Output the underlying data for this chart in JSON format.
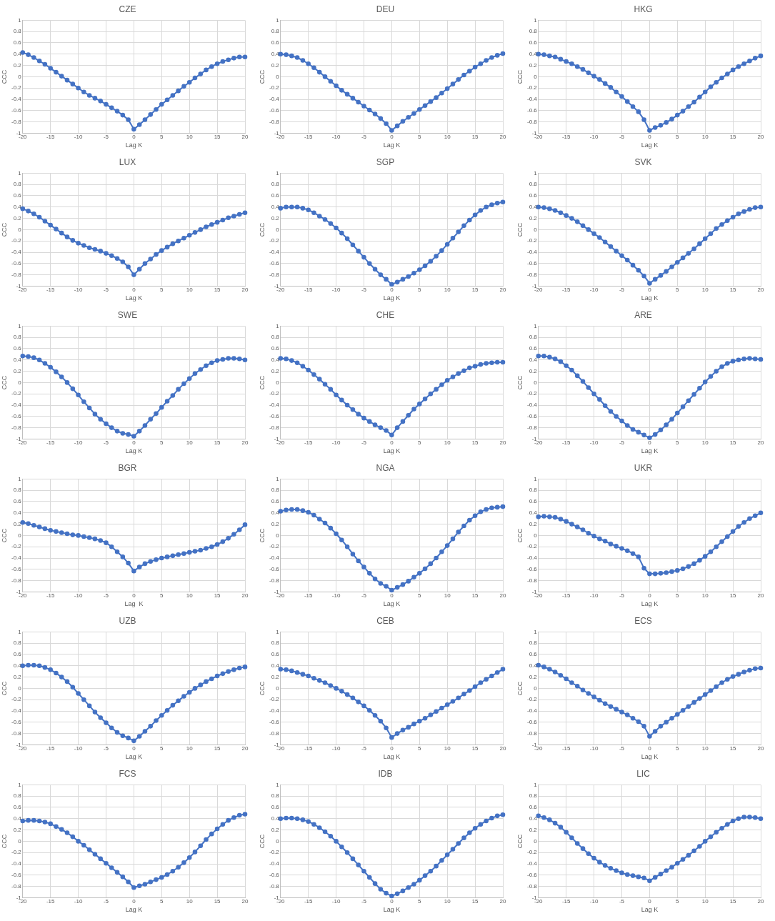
{
  "chart_data": [
    {
      "type": "line",
      "title": "CZE",
      "xlabel": "Lag K",
      "ylabel": "CCC",
      "x": [
        -20,
        -19,
        -18,
        -17,
        -16,
        -15,
        -14,
        -13,
        -12,
        -11,
        -10,
        -9,
        -8,
        -7,
        -6,
        -5,
        -4,
        -3,
        -2,
        -1,
        0,
        1,
        2,
        3,
        4,
        5,
        6,
        7,
        8,
        9,
        10,
        11,
        12,
        13,
        14,
        15,
        16,
        17,
        18,
        19,
        20
      ],
      "series": [
        {
          "color": "#4472c4",
          "values": [
            0.43,
            0.39,
            0.34,
            0.28,
            0.22,
            0.15,
            0.08,
            0.01,
            -0.06,
            -0.13,
            -0.2,
            -0.27,
            -0.33,
            -0.38,
            -0.43,
            -0.49,
            -0.55,
            -0.61,
            -0.68,
            -0.76,
            -0.93,
            -0.85,
            -0.76,
            -0.67,
            -0.58,
            -0.49,
            -0.41,
            -0.33,
            -0.25,
            -0.17,
            -0.1,
            -0.02,
            0.05,
            0.12,
            0.18,
            0.23,
            0.27,
            0.3,
            0.33,
            0.35,
            0.35
          ]
        }
      ],
      "xlim": [
        -20,
        20
      ],
      "xticks": [
        -20,
        -15,
        -10,
        -5,
        0,
        5,
        10,
        15,
        20
      ],
      "ylim": [
        -1,
        1
      ],
      "yticks": [
        -1,
        -0.8,
        -0.6,
        -0.4,
        -0.2,
        0,
        0.2,
        0.4,
        0.6,
        0.8,
        1
      ],
      "grid": true,
      "marker": "circle"
    },
    {
      "type": "line",
      "title": "DEU",
      "xlabel": "Lag K",
      "ylabel": "CCC",
      "x": [
        -20,
        -19,
        -18,
        -17,
        -16,
        -15,
        -14,
        -13,
        -12,
        -11,
        -10,
        -9,
        -8,
        -7,
        -6,
        -5,
        -4,
        -3,
        -2,
        -1,
        0,
        1,
        2,
        3,
        4,
        5,
        6,
        7,
        8,
        9,
        10,
        11,
        12,
        13,
        14,
        15,
        16,
        17,
        18,
        19,
        20
      ],
      "series": [
        {
          "color": "#4472c4",
          "values": [
            0.4,
            0.39,
            0.37,
            0.34,
            0.29,
            0.23,
            0.16,
            0.08,
            0,
            -0.08,
            -0.16,
            -0.24,
            -0.31,
            -0.38,
            -0.45,
            -0.52,
            -0.59,
            -0.66,
            -0.74,
            -0.83,
            -0.95,
            -0.87,
            -0.79,
            -0.72,
            -0.65,
            -0.58,
            -0.51,
            -0.44,
            -0.37,
            -0.29,
            -0.21,
            -0.13,
            -0.05,
            0.03,
            0.1,
            0.17,
            0.23,
            0.29,
            0.34,
            0.38,
            0.41
          ]
        }
      ],
      "xlim": [
        -20,
        20
      ],
      "xticks": [
        -20,
        -15,
        -10,
        -5,
        0,
        5,
        10,
        15,
        20
      ],
      "ylim": [
        -1,
        1
      ],
      "yticks": [
        -1,
        -0.8,
        -0.6,
        -0.4,
        -0.2,
        0,
        0.2,
        0.4,
        0.6,
        0.8,
        1
      ],
      "grid": true,
      "marker": "circle"
    },
    {
      "type": "line",
      "title": "HKG",
      "xlabel": "Lag K",
      "ylabel": "CCC",
      "x": [
        -20,
        -19,
        -18,
        -17,
        -16,
        -15,
        -14,
        -13,
        -12,
        -11,
        -10,
        -9,
        -8,
        -7,
        -6,
        -5,
        -4,
        -3,
        -2,
        -1,
        0,
        1,
        2,
        3,
        4,
        5,
        6,
        7,
        8,
        9,
        10,
        11,
        12,
        13,
        14,
        15,
        16,
        17,
        18,
        19,
        20
      ],
      "series": [
        {
          "color": "#4472c4",
          "values": [
            0.4,
            0.39,
            0.37,
            0.35,
            0.31,
            0.27,
            0.23,
            0.18,
            0.13,
            0.07,
            0.01,
            -0.05,
            -0.12,
            -0.19,
            -0.27,
            -0.35,
            -0.44,
            -0.53,
            -0.62,
            -0.76,
            -0.95,
            -0.9,
            -0.86,
            -0.81,
            -0.75,
            -0.68,
            -0.61,
            -0.53,
            -0.45,
            -0.36,
            -0.27,
            -0.18,
            -0.1,
            -0.02,
            0.05,
            0.12,
            0.18,
            0.23,
            0.28,
            0.33,
            0.37
          ]
        }
      ],
      "xlim": [
        -20,
        20
      ],
      "xticks": [
        -20,
        -15,
        -10,
        -5,
        0,
        5,
        10,
        15,
        20
      ],
      "ylim": [
        -1,
        1
      ],
      "yticks": [
        -1,
        -0.8,
        -0.6,
        -0.4,
        -0.2,
        0,
        0.2,
        0.4,
        0.6,
        0.8,
        1
      ],
      "grid": true,
      "marker": "circle"
    },
    {
      "type": "line",
      "title": "LUX",
      "xlabel": "Lag K",
      "ylabel": "CCC",
      "x": [
        -20,
        -19,
        -18,
        -17,
        -16,
        -15,
        -14,
        -13,
        -12,
        -11,
        -10,
        -9,
        -8,
        -7,
        -6,
        -5,
        -4,
        -3,
        -2,
        -1,
        0,
        1,
        2,
        3,
        4,
        5,
        6,
        7,
        8,
        9,
        10,
        11,
        12,
        13,
        14,
        15,
        16,
        17,
        18,
        19,
        20
      ],
      "series": [
        {
          "color": "#4472c4",
          "values": [
            0.37,
            0.33,
            0.28,
            0.22,
            0.15,
            0.08,
            0.01,
            -0.06,
            -0.13,
            -0.19,
            -0.24,
            -0.28,
            -0.32,
            -0.35,
            -0.38,
            -0.42,
            -0.46,
            -0.51,
            -0.57,
            -0.66,
            -0.8,
            -0.7,
            -0.6,
            -0.52,
            -0.44,
            -0.37,
            -0.31,
            -0.25,
            -0.2,
            -0.15,
            -0.1,
            -0.05,
            0,
            0.05,
            0.09,
            0.13,
            0.17,
            0.21,
            0.24,
            0.27,
            0.3
          ]
        }
      ],
      "xlim": [
        -20,
        20
      ],
      "xticks": [
        -20,
        -15,
        -10,
        -5,
        0,
        5,
        10,
        15,
        20
      ],
      "ylim": [
        -1,
        1
      ],
      "yticks": [
        -1,
        -0.8,
        -0.6,
        -0.4,
        -0.2,
        0,
        0.2,
        0.4,
        0.6,
        0.8,
        1
      ],
      "grid": true,
      "marker": "circle"
    },
    {
      "type": "line",
      "title": "SGP",
      "xlabel": "Lag K",
      "ylabel": "CCC",
      "x": [
        -20,
        -19,
        -18,
        -17,
        -16,
        -15,
        -14,
        -13,
        -12,
        -11,
        -10,
        -9,
        -8,
        -7,
        -6,
        -5,
        -4,
        -3,
        -2,
        -1,
        0,
        1,
        2,
        3,
        4,
        5,
        6,
        7,
        8,
        9,
        10,
        11,
        12,
        13,
        14,
        15,
        16,
        17,
        18,
        19,
        20
      ],
      "series": [
        {
          "color": "#4472c4",
          "values": [
            0.38,
            0.4,
            0.4,
            0.4,
            0.38,
            0.35,
            0.3,
            0.24,
            0.18,
            0.11,
            0.03,
            -0.06,
            -0.16,
            -0.27,
            -0.38,
            -0.49,
            -0.6,
            -0.7,
            -0.8,
            -0.88,
            -0.97,
            -0.93,
            -0.88,
            -0.83,
            -0.77,
            -0.71,
            -0.64,
            -0.56,
            -0.47,
            -0.37,
            -0.26,
            -0.15,
            -0.04,
            0.07,
            0.17,
            0.26,
            0.34,
            0.4,
            0.44,
            0.47,
            0.49
          ]
        }
      ],
      "xlim": [
        -20,
        20
      ],
      "xticks": [
        -20,
        -15,
        -10,
        -5,
        0,
        5,
        10,
        15,
        20
      ],
      "ylim": [
        -1,
        1
      ],
      "yticks": [
        -1,
        -0.8,
        -0.6,
        -0.4,
        -0.2,
        0,
        0.2,
        0.4,
        0.6,
        0.8,
        1
      ],
      "grid": true,
      "marker": "circle"
    },
    {
      "type": "line",
      "title": "SVK",
      "xlabel": "Lag K",
      "ylabel": "CCC",
      "x": [
        -20,
        -19,
        -18,
        -17,
        -16,
        -15,
        -14,
        -13,
        -12,
        -11,
        -10,
        -9,
        -8,
        -7,
        -6,
        -5,
        -4,
        -3,
        -2,
        -1,
        0,
        1,
        2,
        3,
        4,
        5,
        6,
        7,
        8,
        9,
        10,
        11,
        12,
        13,
        14,
        15,
        16,
        17,
        18,
        19,
        20
      ],
      "series": [
        {
          "color": "#4472c4",
          "values": [
            0.4,
            0.39,
            0.37,
            0.34,
            0.3,
            0.25,
            0.2,
            0.14,
            0.07,
            0,
            -0.07,
            -0.14,
            -0.22,
            -0.3,
            -0.38,
            -0.46,
            -0.54,
            -0.63,
            -0.72,
            -0.82,
            -0.95,
            -0.88,
            -0.81,
            -0.74,
            -0.66,
            -0.58,
            -0.5,
            -0.42,
            -0.34,
            -0.25,
            -0.16,
            -0.07,
            0.02,
            0.09,
            0.16,
            0.22,
            0.28,
            0.32,
            0.36,
            0.39,
            0.4
          ]
        }
      ],
      "xlim": [
        -20,
        20
      ],
      "xticks": [
        -20,
        -15,
        -10,
        -5,
        0,
        5,
        10,
        15,
        20
      ],
      "ylim": [
        -1,
        1
      ],
      "yticks": [
        -1,
        -0.8,
        -0.6,
        -0.4,
        -0.2,
        0,
        0.2,
        0.4,
        0.6,
        0.8,
        1
      ],
      "grid": true,
      "marker": "circle"
    },
    {
      "type": "line",
      "title": "SWE",
      "xlabel": "Lag K",
      "ylabel": "CCC",
      "x": [
        -20,
        -19,
        -18,
        -17,
        -16,
        -15,
        -14,
        -13,
        -12,
        -11,
        -10,
        -9,
        -8,
        -7,
        -6,
        -5,
        -4,
        -3,
        -2,
        -1,
        0,
        1,
        2,
        3,
        4,
        5,
        6,
        7,
        8,
        9,
        10,
        11,
        12,
        13,
        14,
        15,
        16,
        17,
        18,
        19,
        20
      ],
      "series": [
        {
          "color": "#4472c4",
          "values": [
            0.47,
            0.46,
            0.44,
            0.4,
            0.34,
            0.27,
            0.19,
            0.1,
            0,
            -0.11,
            -0.22,
            -0.34,
            -0.45,
            -0.56,
            -0.65,
            -0.73,
            -0.8,
            -0.86,
            -0.9,
            -0.92,
            -0.95,
            -0.86,
            -0.76,
            -0.65,
            -0.55,
            -0.44,
            -0.33,
            -0.23,
            -0.12,
            -0.02,
            0.07,
            0.16,
            0.23,
            0.3,
            0.35,
            0.39,
            0.41,
            0.43,
            0.43,
            0.42,
            0.4
          ]
        }
      ],
      "xlim": [
        -20,
        20
      ],
      "xticks": [
        -20,
        -15,
        -10,
        -5,
        0,
        5,
        10,
        15,
        20
      ],
      "ylim": [
        -1,
        1
      ],
      "yticks": [
        -1,
        -0.8,
        -0.6,
        -0.4,
        -0.2,
        0,
        0.2,
        0.4,
        0.6,
        0.8,
        1
      ],
      "grid": true,
      "marker": "circle"
    },
    {
      "type": "line",
      "title": "CHE",
      "xlabel": "Lag K",
      "ylabel": "CCC",
      "x": [
        -20,
        -19,
        -18,
        -17,
        -16,
        -15,
        -14,
        -13,
        -12,
        -11,
        -10,
        -9,
        -8,
        -7,
        -6,
        -5,
        -4,
        -3,
        -2,
        -1,
        0,
        1,
        2,
        3,
        4,
        5,
        6,
        7,
        8,
        9,
        10,
        11,
        12,
        13,
        14,
        15,
        16,
        17,
        18,
        19,
        20
      ],
      "series": [
        {
          "color": "#4472c4",
          "values": [
            0.43,
            0.42,
            0.39,
            0.35,
            0.29,
            0.22,
            0.14,
            0.06,
            -0.03,
            -0.12,
            -0.22,
            -0.31,
            -0.4,
            -0.48,
            -0.56,
            -0.63,
            -0.69,
            -0.75,
            -0.8,
            -0.85,
            -0.93,
            -0.8,
            -0.69,
            -0.58,
            -0.47,
            -0.38,
            -0.29,
            -0.2,
            -0.12,
            -0.04,
            0.04,
            0.1,
            0.16,
            0.21,
            0.26,
            0.29,
            0.32,
            0.34,
            0.35,
            0.36,
            0.36
          ]
        }
      ],
      "xlim": [
        -20,
        20
      ],
      "xticks": [
        -20,
        -15,
        -10,
        -5,
        0,
        5,
        10,
        15,
        20
      ],
      "ylim": [
        -1,
        1
      ],
      "yticks": [
        -1,
        -0.8,
        -0.6,
        -0.4,
        -0.2,
        0,
        0.2,
        0.4,
        0.6,
        0.8,
        1
      ],
      "grid": true,
      "marker": "circle"
    },
    {
      "type": "line",
      "title": "ARE",
      "xlabel": "Lag K",
      "ylabel": "CCC",
      "x": [
        -20,
        -19,
        -18,
        -17,
        -16,
        -15,
        -14,
        -13,
        -12,
        -11,
        -10,
        -9,
        -8,
        -7,
        -6,
        -5,
        -4,
        -3,
        -2,
        -1,
        0,
        1,
        2,
        3,
        4,
        5,
        6,
        7,
        8,
        9,
        10,
        11,
        12,
        13,
        14,
        15,
        16,
        17,
        18,
        19,
        20
      ],
      "series": [
        {
          "color": "#4472c4",
          "values": [
            0.47,
            0.47,
            0.45,
            0.42,
            0.37,
            0.3,
            0.22,
            0.12,
            0.02,
            -0.09,
            -0.2,
            -0.3,
            -0.41,
            -0.51,
            -0.6,
            -0.68,
            -0.76,
            -0.83,
            -0.88,
            -0.93,
            -0.98,
            -0.92,
            -0.84,
            -0.75,
            -0.65,
            -0.54,
            -0.43,
            -0.32,
            -0.21,
            -0.1,
            0.01,
            0.11,
            0.2,
            0.28,
            0.34,
            0.38,
            0.4,
            0.42,
            0.43,
            0.42,
            0.41
          ]
        }
      ],
      "xlim": [
        -20,
        20
      ],
      "xticks": [
        -20,
        -15,
        -10,
        -5,
        0,
        5,
        10,
        15,
        20
      ],
      "ylim": [
        -1,
        1
      ],
      "yticks": [
        -1,
        -0.8,
        -0.6,
        -0.4,
        -0.2,
        0,
        0.2,
        0.4,
        0.6,
        0.8,
        1
      ],
      "grid": true,
      "marker": "circle"
    },
    {
      "type": "line",
      "title": "BGR",
      "xlabel": "Lag  K",
      "ylabel": "CCC",
      "x": [
        -20,
        -19,
        -18,
        -17,
        -16,
        -15,
        -14,
        -13,
        -12,
        -11,
        -10,
        -9,
        -8,
        -7,
        -6,
        -5,
        -4,
        -3,
        -2,
        -1,
        0,
        1,
        2,
        3,
        4,
        5,
        6,
        7,
        8,
        9,
        10,
        11,
        12,
        13,
        14,
        15,
        16,
        17,
        18,
        19,
        20
      ],
      "series": [
        {
          "color": "#4472c4",
          "values": [
            0.23,
            0.21,
            0.18,
            0.15,
            0.12,
            0.09,
            0.07,
            0.05,
            0.03,
            0.01,
            0,
            -0.02,
            -0.04,
            -0.06,
            -0.09,
            -0.13,
            -0.2,
            -0.29,
            -0.38,
            -0.49,
            -0.63,
            -0.56,
            -0.5,
            -0.46,
            -0.43,
            -0.4,
            -0.38,
            -0.36,
            -0.34,
            -0.32,
            -0.3,
            -0.28,
            -0.26,
            -0.23,
            -0.2,
            -0.16,
            -0.11,
            -0.05,
            0.02,
            0.1,
            0.19
          ]
        }
      ],
      "xlim": [
        -20,
        20
      ],
      "xticks": [
        -20,
        -15,
        -10,
        -5,
        0,
        5,
        10,
        15,
        20
      ],
      "ylim": [
        -1,
        1
      ],
      "yticks": [
        -1,
        -0.8,
        -0.6,
        -0.4,
        -0.2,
        0,
        0.2,
        0.4,
        0.6,
        0.8,
        1
      ],
      "grid": true,
      "marker": "circle"
    },
    {
      "type": "line",
      "title": "NGA",
      "xlabel": "Lag K",
      "ylabel": "CCC",
      "x": [
        -20,
        -19,
        -18,
        -17,
        -16,
        -15,
        -14,
        -13,
        -12,
        -11,
        -10,
        -9,
        -8,
        -7,
        -6,
        -5,
        -4,
        -3,
        -2,
        -1,
        0,
        1,
        2,
        3,
        4,
        5,
        6,
        7,
        8,
        9,
        10,
        11,
        12,
        13,
        14,
        15,
        16,
        17,
        18,
        19,
        20
      ],
      "series": [
        {
          "color": "#4472c4",
          "values": [
            0.43,
            0.45,
            0.46,
            0.46,
            0.44,
            0.41,
            0.36,
            0.29,
            0.22,
            0.13,
            0.03,
            -0.08,
            -0.2,
            -0.33,
            -0.45,
            -0.56,
            -0.67,
            -0.77,
            -0.85,
            -0.9,
            -0.97,
            -0.92,
            -0.87,
            -0.81,
            -0.74,
            -0.67,
            -0.59,
            -0.5,
            -0.4,
            -0.29,
            -0.18,
            -0.06,
            0.06,
            0.17,
            0.27,
            0.35,
            0.42,
            0.46,
            0.49,
            0.5,
            0.51
          ]
        }
      ],
      "xlim": [
        -20,
        20
      ],
      "xticks": [
        -20,
        -15,
        -10,
        -5,
        0,
        5,
        10,
        15,
        20
      ],
      "ylim": [
        -1,
        1
      ],
      "yticks": [
        -1,
        -0.8,
        -0.6,
        -0.4,
        -0.2,
        0,
        0.2,
        0.4,
        0.6,
        0.8,
        1
      ],
      "grid": true,
      "marker": "circle"
    },
    {
      "type": "line",
      "title": "UKR",
      "xlabel": "Lag K",
      "ylabel": "CCC",
      "x": [
        -20,
        -19,
        -18,
        -17,
        -16,
        -15,
        -14,
        -13,
        -12,
        -11,
        -10,
        -9,
        -8,
        -7,
        -6,
        -5,
        -4,
        -3,
        -2,
        -1,
        0,
        1,
        2,
        3,
        4,
        5,
        6,
        7,
        8,
        9,
        10,
        11,
        12,
        13,
        14,
        15,
        16,
        17,
        18,
        19,
        20
      ],
      "series": [
        {
          "color": "#4472c4",
          "values": [
            0.33,
            0.34,
            0.33,
            0.32,
            0.29,
            0.25,
            0.2,
            0.15,
            0.1,
            0.04,
            -0.01,
            -0.06,
            -0.1,
            -0.15,
            -0.19,
            -0.23,
            -0.27,
            -0.32,
            -0.38,
            -0.58,
            -0.68,
            -0.68,
            -0.67,
            -0.66,
            -0.64,
            -0.62,
            -0.59,
            -0.55,
            -0.5,
            -0.44,
            -0.37,
            -0.29,
            -0.2,
            -0.11,
            -0.02,
            0.07,
            0.16,
            0.23,
            0.3,
            0.35,
            0.4
          ]
        }
      ],
      "xlim": [
        -20,
        20
      ],
      "xticks": [
        -20,
        -15,
        -10,
        -5,
        0,
        5,
        10,
        15,
        20
      ],
      "ylim": [
        -1,
        1
      ],
      "yticks": [
        -1,
        -0.8,
        -0.6,
        -0.4,
        -0.2,
        0,
        0.2,
        0.4,
        0.6,
        0.8,
        1
      ],
      "grid": true,
      "marker": "circle"
    },
    {
      "type": "line",
      "title": "UZB",
      "xlabel": "Lag K",
      "ylabel": "CCC",
      "x": [
        -20,
        -19,
        -18,
        -17,
        -16,
        -15,
        -14,
        -13,
        -12,
        -11,
        -10,
        -9,
        -8,
        -7,
        -6,
        -5,
        -4,
        -3,
        -2,
        -1,
        0,
        1,
        2,
        3,
        4,
        5,
        6,
        7,
        8,
        9,
        10,
        11,
        12,
        13,
        14,
        15,
        16,
        17,
        18,
        19,
        20
      ],
      "series": [
        {
          "color": "#4472c4",
          "values": [
            0.4,
            0.41,
            0.41,
            0.4,
            0.37,
            0.33,
            0.27,
            0.2,
            0.12,
            0.02,
            -0.09,
            -0.2,
            -0.31,
            -0.42,
            -0.52,
            -0.61,
            -0.7,
            -0.78,
            -0.84,
            -0.88,
            -0.93,
            -0.85,
            -0.76,
            -0.67,
            -0.57,
            -0.48,
            -0.39,
            -0.3,
            -0.22,
            -0.14,
            -0.07,
            0,
            0.06,
            0.12,
            0.17,
            0.22,
            0.26,
            0.3,
            0.33,
            0.36,
            0.38
          ]
        }
      ],
      "xlim": [
        -20,
        20
      ],
      "xticks": [
        -20,
        -15,
        -10,
        -5,
        0,
        5,
        10,
        15,
        20
      ],
      "ylim": [
        -1,
        1
      ],
      "yticks": [
        -1,
        -0.8,
        -0.6,
        -0.4,
        -0.2,
        0,
        0.2,
        0.4,
        0.6,
        0.8,
        1
      ],
      "grid": true,
      "marker": "circle"
    },
    {
      "type": "line",
      "title": "CEB",
      "xlabel": "Lag K",
      "ylabel": "CCC",
      "x": [
        -20,
        -19,
        -18,
        -17,
        -16,
        -15,
        -14,
        -13,
        -12,
        -11,
        -10,
        -9,
        -8,
        -7,
        -6,
        -5,
        -4,
        -3,
        -2,
        -1,
        0,
        1,
        2,
        3,
        4,
        5,
        6,
        7,
        8,
        9,
        10,
        11,
        12,
        13,
        14,
        15,
        16,
        17,
        18,
        19,
        20
      ],
      "series": [
        {
          "color": "#4472c4",
          "values": [
            0.34,
            0.33,
            0.31,
            0.28,
            0.25,
            0.22,
            0.18,
            0.14,
            0.1,
            0.05,
            0,
            -0.05,
            -0.11,
            -0.17,
            -0.24,
            -0.31,
            -0.39,
            -0.48,
            -0.58,
            -0.7,
            -0.87,
            -0.8,
            -0.74,
            -0.69,
            -0.63,
            -0.58,
            -0.53,
            -0.47,
            -0.41,
            -0.35,
            -0.29,
            -0.23,
            -0.17,
            -0.1,
            -0.04,
            0.03,
            0.1,
            0.16,
            0.22,
            0.28,
            0.34
          ]
        }
      ],
      "xlim": [
        -20,
        20
      ],
      "xticks": [
        -20,
        -15,
        -10,
        -5,
        0,
        5,
        10,
        15,
        20
      ],
      "ylim": [
        -1,
        1
      ],
      "yticks": [
        -1,
        -0.8,
        -0.6,
        -0.4,
        -0.2,
        0,
        0.2,
        0.4,
        0.6,
        0.8,
        1
      ],
      "grid": true,
      "marker": "circle"
    },
    {
      "type": "line",
      "title": "ECS",
      "xlabel": "Lag K",
      "ylabel": "CCC",
      "x": [
        -20,
        -19,
        -18,
        -17,
        -16,
        -15,
        -14,
        -13,
        -12,
        -11,
        -10,
        -9,
        -8,
        -7,
        -6,
        -5,
        -4,
        -3,
        -2,
        -1,
        0,
        1,
        2,
        3,
        4,
        5,
        6,
        7,
        8,
        9,
        10,
        11,
        12,
        13,
        14,
        15,
        16,
        17,
        18,
        19,
        20
      ],
      "series": [
        {
          "color": "#4472c4",
          "values": [
            0.41,
            0.38,
            0.34,
            0.29,
            0.23,
            0.17,
            0.1,
            0.04,
            -0.03,
            -0.09,
            -0.15,
            -0.21,
            -0.27,
            -0.32,
            -0.37,
            -0.42,
            -0.47,
            -0.53,
            -0.59,
            -0.67,
            -0.85,
            -0.76,
            -0.67,
            -0.6,
            -0.53,
            -0.46,
            -0.39,
            -0.32,
            -0.25,
            -0.18,
            -0.11,
            -0.04,
            0.03,
            0.1,
            0.16,
            0.21,
            0.25,
            0.29,
            0.32,
            0.35,
            0.36
          ]
        }
      ],
      "xlim": [
        -20,
        20
      ],
      "xticks": [
        -20,
        -15,
        -10,
        -5,
        0,
        5,
        10,
        15,
        20
      ],
      "ylim": [
        -1,
        1
      ],
      "yticks": [
        -1,
        -0.8,
        -0.6,
        -0.4,
        -0.2,
        0,
        0.2,
        0.4,
        0.6,
        0.8,
        1
      ],
      "grid": true,
      "marker": "circle"
    },
    {
      "type": "line",
      "title": "FCS",
      "xlabel": "Lag K",
      "ylabel": "CCC",
      "x": [
        -20,
        -19,
        -18,
        -17,
        -16,
        -15,
        -14,
        -13,
        -12,
        -11,
        -10,
        -9,
        -8,
        -7,
        -6,
        -5,
        -4,
        -3,
        -2,
        -1,
        0,
        1,
        2,
        3,
        4,
        5,
        6,
        7,
        8,
        9,
        10,
        11,
        12,
        13,
        14,
        15,
        16,
        17,
        18,
        19,
        20
      ],
      "series": [
        {
          "color": "#4472c4",
          "values": [
            0.36,
            0.37,
            0.37,
            0.36,
            0.34,
            0.31,
            0.26,
            0.21,
            0.15,
            0.08,
            0,
            -0.07,
            -0.15,
            -0.23,
            -0.31,
            -0.39,
            -0.47,
            -0.55,
            -0.63,
            -0.72,
            -0.82,
            -0.79,
            -0.76,
            -0.72,
            -0.68,
            -0.64,
            -0.59,
            -0.53,
            -0.46,
            -0.38,
            -0.29,
            -0.19,
            -0.08,
            0.03,
            0.13,
            0.22,
            0.3,
            0.37,
            0.42,
            0.46,
            0.48
          ]
        }
      ],
      "xlim": [
        -20,
        20
      ],
      "xticks": [
        -20,
        -15,
        -10,
        -5,
        0,
        5,
        10,
        15,
        20
      ],
      "ylim": [
        -1,
        1
      ],
      "yticks": [
        -1,
        -0.8,
        -0.6,
        -0.4,
        -0.2,
        0,
        0.2,
        0.4,
        0.6,
        0.8,
        1
      ],
      "grid": true,
      "marker": "circle"
    },
    {
      "type": "line",
      "title": "IDB",
      "xlabel": "Lag K",
      "ylabel": "CCC",
      "x": [
        -20,
        -19,
        -18,
        -17,
        -16,
        -15,
        -14,
        -13,
        -12,
        -11,
        -10,
        -9,
        -8,
        -7,
        -6,
        -5,
        -4,
        -3,
        -2,
        -1,
        0,
        1,
        2,
        3,
        4,
        5,
        6,
        7,
        8,
        9,
        10,
        11,
        12,
        13,
        14,
        15,
        16,
        17,
        18,
        19,
        20
      ],
      "series": [
        {
          "color": "#4472c4",
          "values": [
            0.4,
            0.41,
            0.41,
            0.4,
            0.38,
            0.35,
            0.3,
            0.24,
            0.17,
            0.09,
            0,
            -0.1,
            -0.2,
            -0.31,
            -0.42,
            -0.53,
            -0.64,
            -0.75,
            -0.85,
            -0.92,
            -0.97,
            -0.93,
            -0.88,
            -0.82,
            -0.76,
            -0.69,
            -0.61,
            -0.53,
            -0.44,
            -0.34,
            -0.24,
            -0.14,
            -0.04,
            0.06,
            0.15,
            0.23,
            0.3,
            0.36,
            0.41,
            0.45,
            0.47
          ]
        }
      ],
      "xlim": [
        -20,
        20
      ],
      "xticks": [
        -20,
        -15,
        -10,
        -5,
        0,
        5,
        10,
        15,
        20
      ],
      "ylim": [
        -1,
        1
      ],
      "yticks": [
        -1,
        -0.8,
        -0.6,
        -0.4,
        -0.2,
        0,
        0.2,
        0.4,
        0.6,
        0.8,
        1
      ],
      "grid": true,
      "marker": "circle"
    },
    {
      "type": "line",
      "title": "LIC",
      "xlabel": "Lag K",
      "ylabel": "CCC",
      "x": [
        -20,
        -19,
        -18,
        -17,
        -16,
        -15,
        -14,
        -13,
        -12,
        -11,
        -10,
        -9,
        -8,
        -7,
        -6,
        -5,
        -4,
        -3,
        -2,
        -1,
        0,
        1,
        2,
        3,
        4,
        5,
        6,
        7,
        8,
        9,
        10,
        11,
        12,
        13,
        14,
        15,
        16,
        17,
        18,
        19,
        20
      ],
      "series": [
        {
          "color": "#4472c4",
          "values": [
            0.45,
            0.42,
            0.38,
            0.32,
            0.25,
            0.16,
            0.06,
            -0.04,
            -0.13,
            -0.22,
            -0.3,
            -0.37,
            -0.43,
            -0.48,
            -0.52,
            -0.56,
            -0.59,
            -0.61,
            -0.63,
            -0.65,
            -0.7,
            -0.64,
            -0.58,
            -0.52,
            -0.46,
            -0.39,
            -0.32,
            -0.25,
            -0.17,
            -0.09,
            0,
            0.08,
            0.16,
            0.23,
            0.3,
            0.36,
            0.4,
            0.43,
            0.43,
            0.42,
            0.4
          ]
        }
      ],
      "xlim": [
        -20,
        20
      ],
      "xticks": [
        -20,
        -15,
        -10,
        -5,
        0,
        5,
        10,
        15,
        20
      ],
      "ylim": [
        -1,
        1
      ],
      "yticks": [
        -1,
        -0.8,
        -0.6,
        -0.4,
        -0.2,
        0,
        0.2,
        0.4,
        0.6,
        0.8,
        1
      ],
      "grid": true,
      "marker": "circle"
    }
  ]
}
